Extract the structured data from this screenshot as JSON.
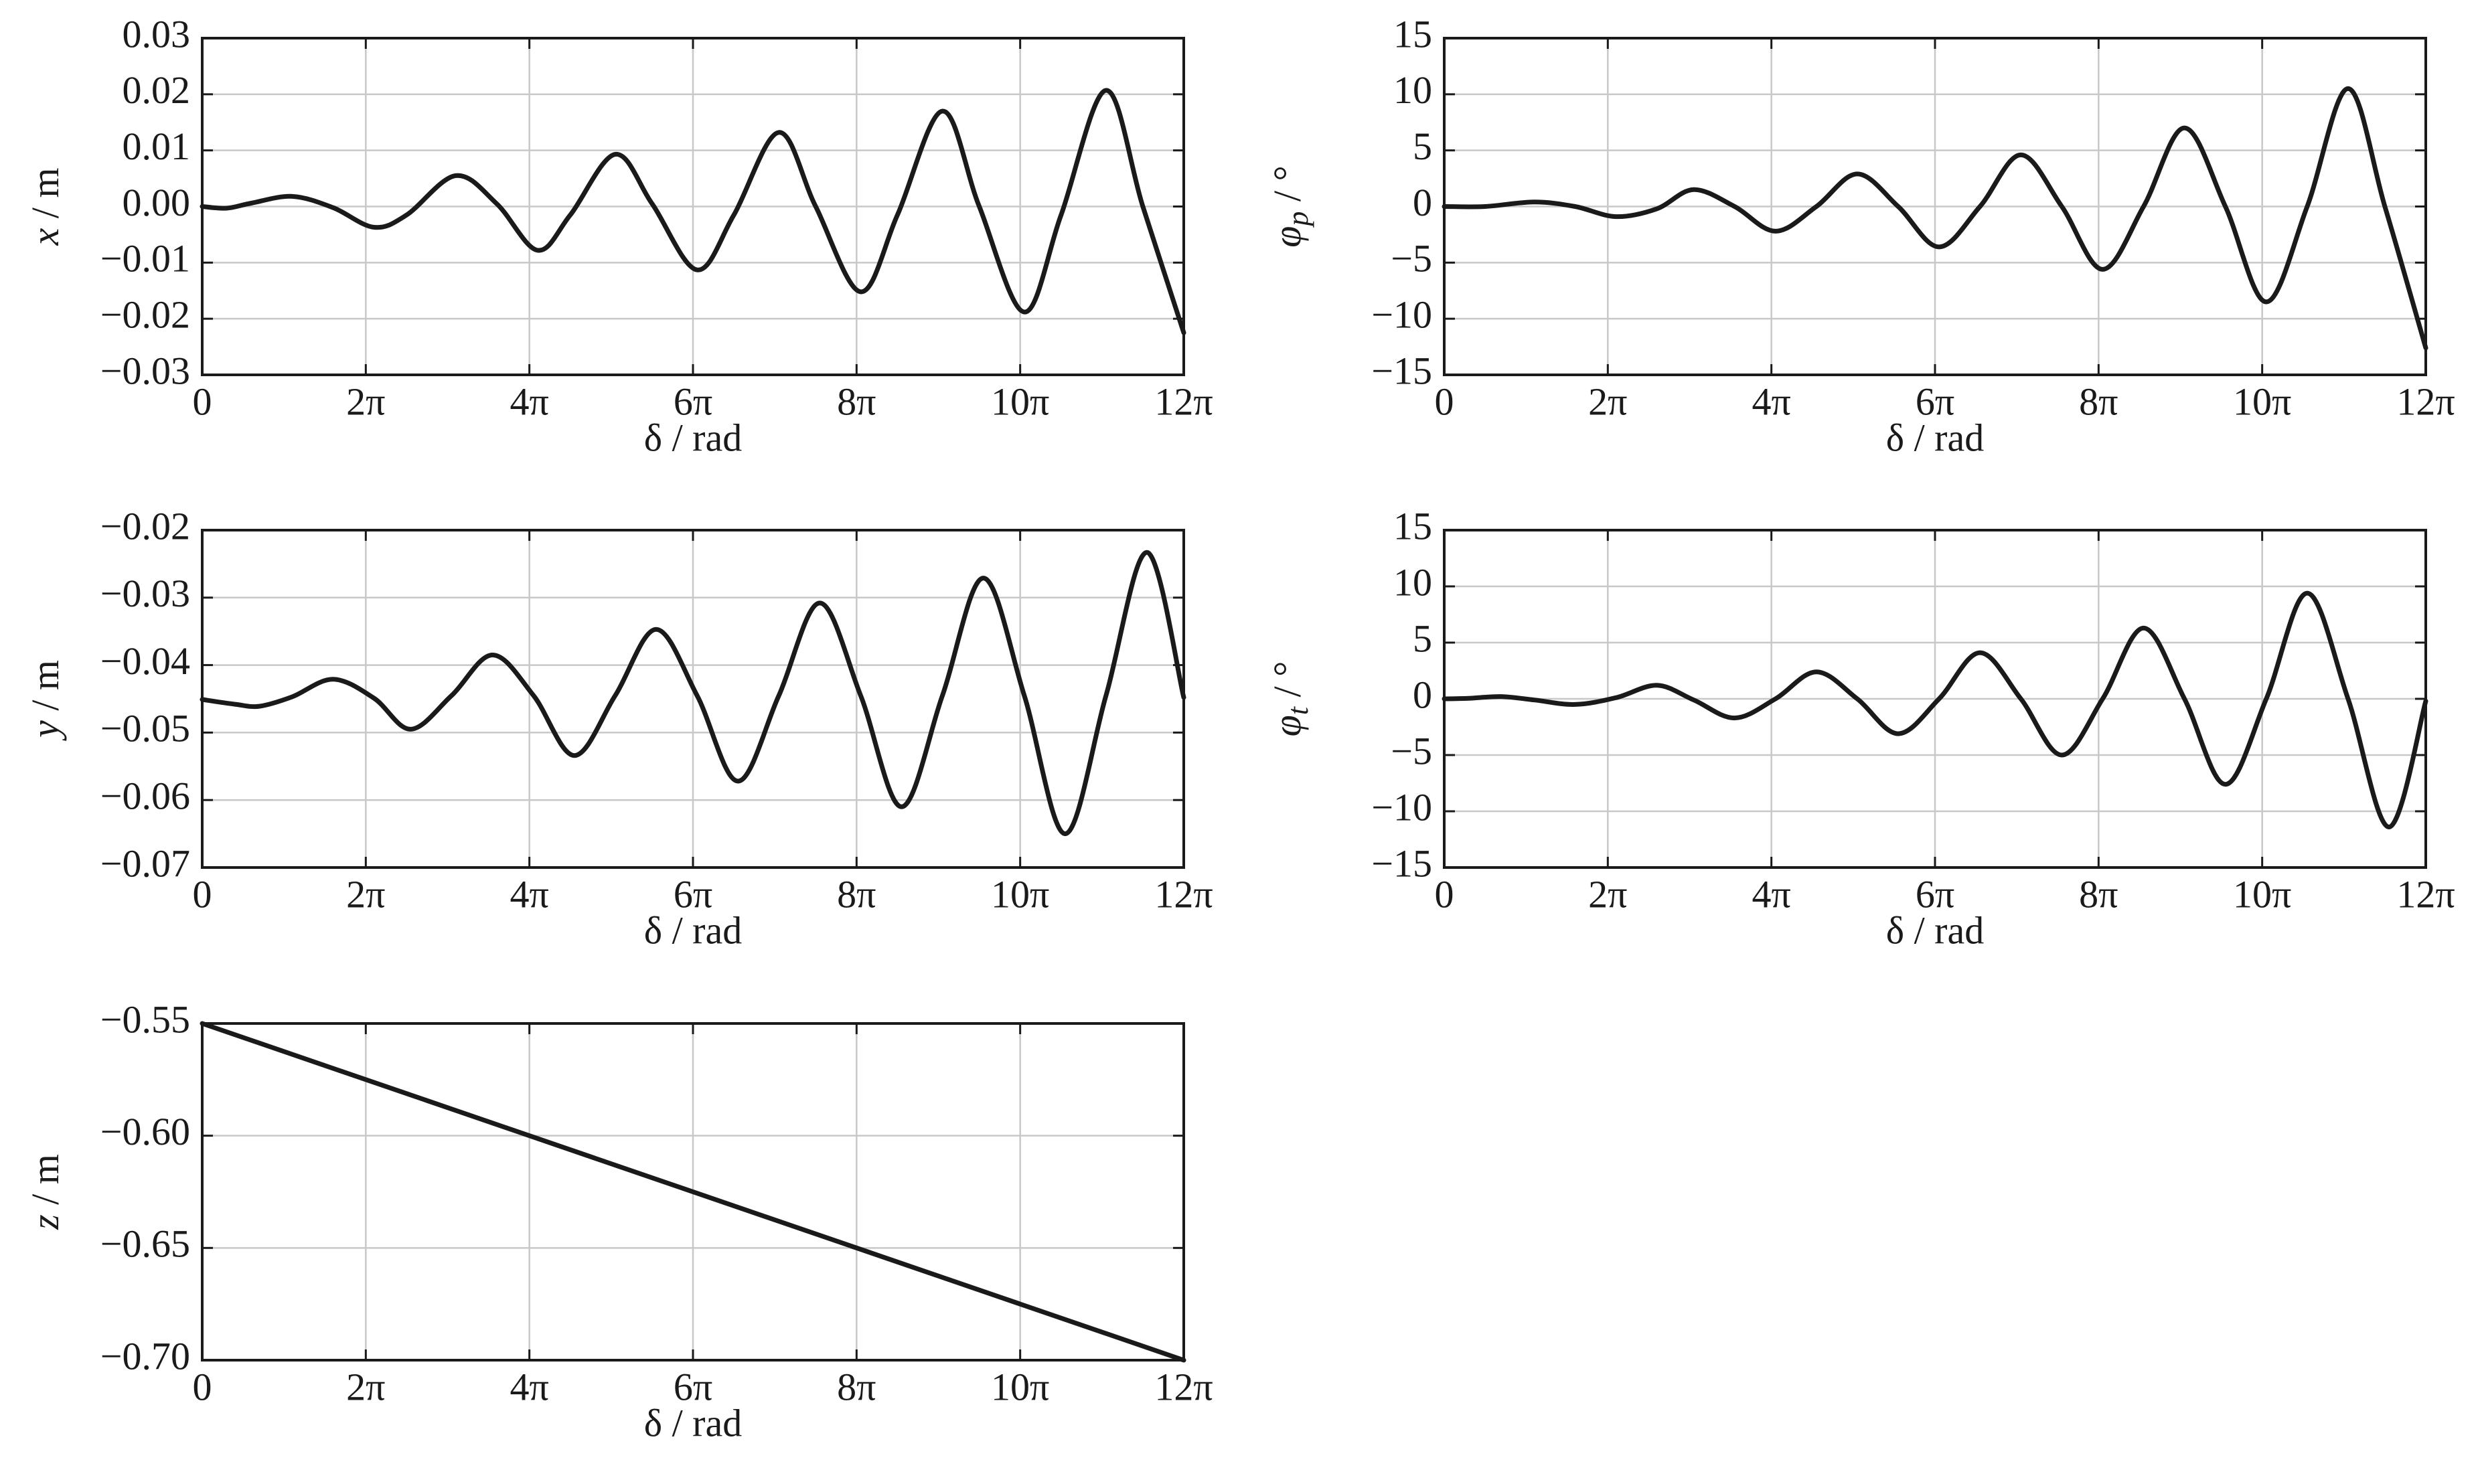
{
  "chart_data": [
    {
      "id": "x",
      "type": "line",
      "xlabel": "δ / rad",
      "ylabel": {
        "var": "x",
        "sub": "",
        "unit": " / m"
      },
      "xticks": [
        "0",
        "2π",
        "4π",
        "6π",
        "8π",
        "10π",
        "12π"
      ],
      "xlim": [
        0,
        12
      ],
      "ylim": [
        -0.03,
        0.03
      ],
      "yticks": [
        "0.03",
        "0.02",
        "0.01",
        "0.00",
        "−0.01",
        "−0.02",
        "−0.03"
      ],
      "series": [
        {
          "x": [
            0,
            0.3,
            0.6,
            1.1,
            1.6,
            2.1,
            2.5,
            3.1,
            3.6,
            4.1,
            4.5,
            5.05,
            5.5,
            6.05,
            6.5,
            7.05,
            7.5,
            8.05,
            8.5,
            9.05,
            9.5,
            10.05,
            10.5,
            11.05,
            11.5,
            12
          ],
          "y": [
            0.0,
            -0.0003,
            0.0006,
            0.0018,
            -0.0002,
            -0.0037,
            -0.0015,
            0.0055,
            0.0005,
            -0.0078,
            -0.0015,
            0.0093,
            0.0005,
            -0.0113,
            -0.0015,
            0.0132,
            0.0,
            -0.0152,
            -0.0015,
            0.017,
            0.0,
            -0.0188,
            -0.0015,
            0.0207,
            0.0,
            -0.0225
          ]
        }
      ]
    },
    {
      "id": "phi_p",
      "type": "line",
      "xlabel": "δ / rad",
      "ylabel": {
        "var": "φ",
        "sub": "p",
        "unit": " / °"
      },
      "xticks": [
        "0",
        "2π",
        "4π",
        "6π",
        "8π",
        "10π",
        "12π"
      ],
      "xlim": [
        0,
        12
      ],
      "ylim": [
        -15,
        15
      ],
      "yticks": [
        "15",
        "10",
        "5",
        "0",
        "−5",
        "−10",
        "−15"
      ],
      "series": [
        {
          "x": [
            0,
            0.5,
            1.1,
            1.6,
            2.1,
            2.6,
            3.05,
            3.55,
            4.05,
            4.55,
            5.05,
            5.55,
            6.05,
            6.55,
            7.05,
            7.55,
            8.05,
            8.55,
            9.05,
            9.55,
            10.05,
            10.55,
            11.05,
            11.5,
            12
          ],
          "y": [
            0.0,
            0.0,
            0.4,
            0.0,
            -0.9,
            -0.2,
            1.5,
            0.0,
            -2.2,
            0.0,
            2.9,
            0.0,
            -3.6,
            0.0,
            4.6,
            0.0,
            -5.6,
            0.0,
            7.0,
            0.0,
            -8.5,
            0.0,
            10.5,
            0.0,
            -12.6
          ]
        }
      ]
    },
    {
      "id": "y",
      "type": "line",
      "xlabel": "δ / rad",
      "ylabel": {
        "var": "y",
        "sub": "",
        "unit": " / m"
      },
      "xticks": [
        "0",
        "2π",
        "4π",
        "6π",
        "8π",
        "10π",
        "12π"
      ],
      "xlim": [
        0,
        12
      ],
      "ylim": [
        -0.07,
        -0.02
      ],
      "yticks": [
        "−0.02",
        "−0.03",
        "−0.04",
        "−0.05",
        "−0.06",
        "−0.07"
      ],
      "series": [
        {
          "x": [
            0,
            0.4,
            0.7,
            1.1,
            1.6,
            2.1,
            2.55,
            3.05,
            3.55,
            4.05,
            4.55,
            5.05,
            5.55,
            6.05,
            6.55,
            7.05,
            7.55,
            8.05,
            8.55,
            9.05,
            9.55,
            10.05,
            10.55,
            11.05,
            11.55,
            12
          ],
          "y": [
            -0.0451,
            -0.0458,
            -0.0461,
            -0.0447,
            -0.0421,
            -0.0449,
            -0.0495,
            -0.0445,
            -0.0385,
            -0.0445,
            -0.0534,
            -0.0445,
            -0.0347,
            -0.0445,
            -0.0572,
            -0.0445,
            -0.0308,
            -0.0445,
            -0.061,
            -0.0445,
            -0.0271,
            -0.0445,
            -0.065,
            -0.0445,
            -0.0233,
            -0.0448
          ]
        }
      ]
    },
    {
      "id": "phi_t",
      "type": "line",
      "xlabel": "δ / rad",
      "ylabel": {
        "var": "φ",
        "sub": "t",
        "unit": " / °"
      },
      "xticks": [
        "0",
        "2π",
        "4π",
        "6π",
        "8π",
        "10π",
        "12π"
      ],
      "xlim": [
        0,
        12
      ],
      "ylim": [
        -15,
        15
      ],
      "yticks": [
        "15",
        "10",
        "5",
        "0",
        "−5",
        "−10",
        "−15"
      ],
      "series": [
        {
          "x": [
            0,
            0.3,
            0.7,
            1.1,
            1.6,
            2.1,
            2.6,
            3.05,
            3.55,
            4.05,
            4.55,
            5.05,
            5.55,
            6.05,
            6.55,
            7.05,
            7.55,
            8.05,
            8.55,
            9.05,
            9.55,
            10.05,
            10.55,
            11.05,
            11.55,
            12
          ],
          "y": [
            0.0,
            0.05,
            0.2,
            -0.1,
            -0.5,
            0.1,
            1.2,
            -0.1,
            -1.7,
            0.0,
            2.4,
            0.0,
            -3.1,
            0.0,
            4.1,
            0.0,
            -5.0,
            0.0,
            6.3,
            0.0,
            -7.6,
            0.0,
            9.4,
            0.0,
            -11.4,
            -0.2
          ]
        }
      ]
    },
    {
      "id": "z",
      "type": "line",
      "xlabel": "δ / rad",
      "ylabel": {
        "var": "z",
        "sub": "",
        "unit": " / m"
      },
      "xticks": [
        "0",
        "2π",
        "4π",
        "6π",
        "8π",
        "10π",
        "12π"
      ],
      "xlim": [
        0,
        12
      ],
      "ylim": [
        -0.7,
        -0.55
      ],
      "yticks": [
        "−0.55",
        "−0.60",
        "−0.65",
        "−0.70"
      ],
      "series": [
        {
          "x": [
            0,
            12
          ],
          "y": [
            -0.55,
            -0.7
          ]
        }
      ]
    }
  ]
}
